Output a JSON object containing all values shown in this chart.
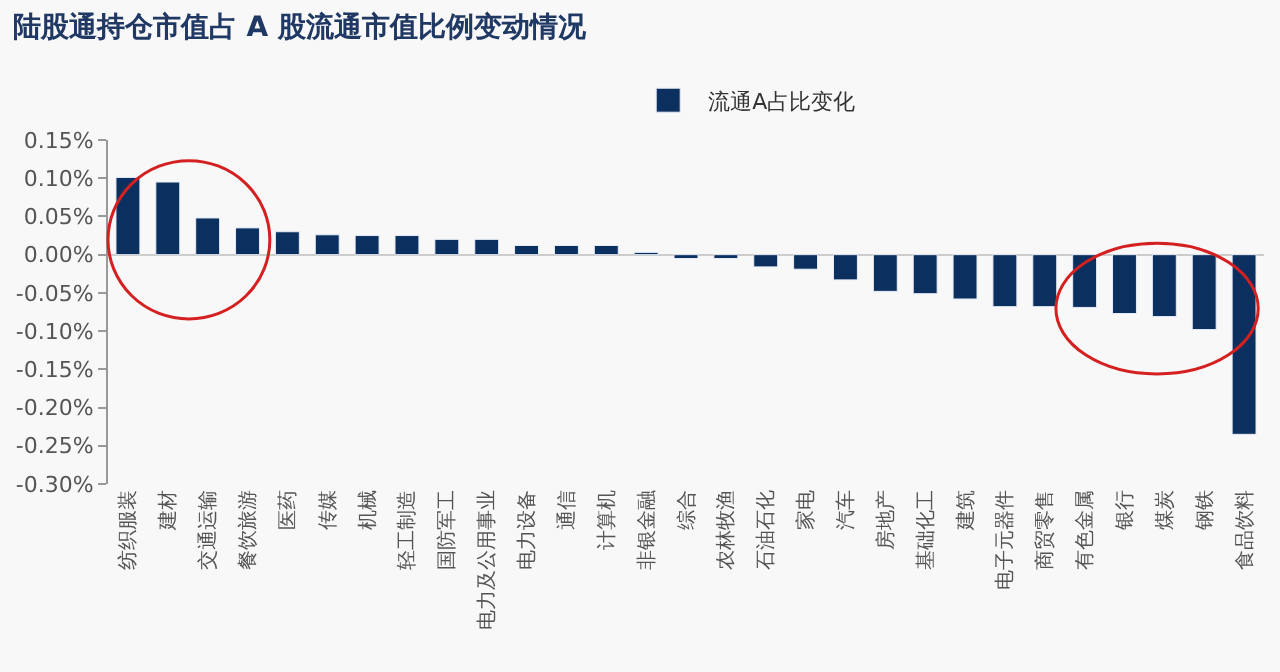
{
  "chart_data": {
    "type": "bar",
    "title": "陆股通持仓市值占 A 股流通市值比例变动情况",
    "categories": [
      "纺织服装",
      "建材",
      "交通运输",
      "餐饮旅游",
      "医药",
      "传媒",
      "机械",
      "轻工制造",
      "国防军工",
      "电力及公用事业",
      "电力设备",
      "通信",
      "计算机",
      "非银金融",
      "综合",
      "农林牧渔",
      "石油石化",
      "家电",
      "汽车",
      "房地产",
      "基础化工",
      "建筑",
      "电子元器件",
      "商贸零售",
      "有色金属",
      "银行",
      "煤炭",
      "钢铁",
      "食品饮料"
    ],
    "series": [
      {
        "name": "流通A占比变化",
        "color": "#0b2f5e",
        "values": [
          0.101,
          0.095,
          0.048,
          0.035,
          0.03,
          0.026,
          0.025,
          0.025,
          0.02,
          0.02,
          0.012,
          0.012,
          0.012,
          0.003,
          -0.005,
          -0.005,
          -0.016,
          -0.019,
          -0.033,
          -0.048,
          -0.051,
          -0.058,
          -0.068,
          -0.068,
          -0.069,
          -0.077,
          -0.081,
          -0.098,
          -0.235
        ]
      }
    ],
    "ylim": [
      -0.3,
      0.15
    ],
    "yticks": [
      {
        "value": -0.3,
        "label": "-0.30%"
      },
      {
        "value": -0.25,
        "label": "-0.25%"
      },
      {
        "value": -0.2,
        "label": "-0.20%"
      },
      {
        "value": -0.15,
        "label": "-0.15%"
      },
      {
        "value": -0.1,
        "label": "-0.10%"
      },
      {
        "value": -0.05,
        "label": "-0.05%"
      },
      {
        "value": 0,
        "label": "0.00%"
      },
      {
        "value": 0.05,
        "label": "0.05%"
      },
      {
        "value": 0.1,
        "label": "0.10%"
      },
      {
        "value": 0.15,
        "label": "0.15%"
      }
    ],
    "legend": "top"
  }
}
